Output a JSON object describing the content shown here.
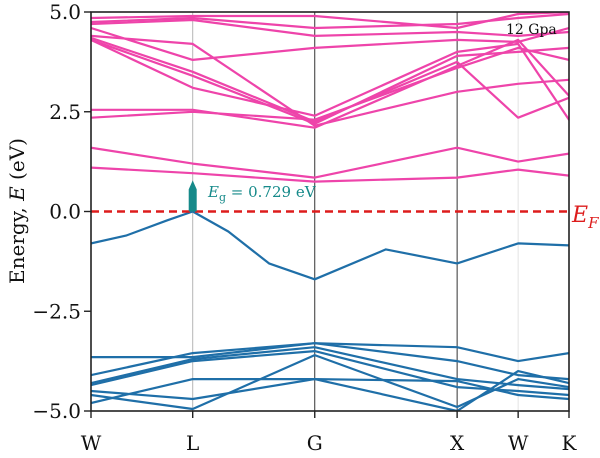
{
  "chart_data": {
    "type": "line",
    "title": "",
    "annotation_pressure": "12 Gpa",
    "ylabel": {
      "prefix": "Energy, ",
      "symbol": "E",
      "unit": " (eV)"
    },
    "ylim": [
      -5.0,
      5.0
    ],
    "yticks": [
      {
        "value": 5.0,
        "label": "5.0"
      },
      {
        "value": 2.5,
        "label": "2.5"
      },
      {
        "value": 0.0,
        "label": "0.0"
      },
      {
        "value": -2.5,
        "label": "−2.5"
      },
      {
        "value": -5.0,
        "label": "−5.0"
      }
    ],
    "kpoint_labels": [
      "W",
      "L",
      "G",
      "X",
      "W",
      "K"
    ],
    "kpoint_positions": [
      0,
      1,
      2.2,
      3.6,
      4.2,
      4.7
    ],
    "fermi_level": {
      "value": 0.0,
      "label_main": "E",
      "label_sub": "F",
      "color": "#dd1c1c"
    },
    "band_gap": {
      "label_main": "E",
      "label_sub": "g",
      "label_value": " = 0.729 eV",
      "value_ev": 0.729,
      "color": "#168a8a"
    },
    "colors": {
      "conduction": "#ee44aa",
      "valence": "#1f6fa8"
    },
    "x_grid": [
      {
        "k": 1,
        "color": "#b5b5b5"
      },
      {
        "k": 2.2,
        "color": "#333333"
      },
      {
        "k": 3.6,
        "color": "#333333"
      },
      {
        "k": 4.2,
        "color": "#e3e3e3"
      }
    ],
    "series": [
      {
        "band": "conduction",
        "x": [
          0,
          1,
          2.2,
          3.6,
          4.2,
          4.7
        ],
        "y": [
          1.1,
          0.96,
          0.75,
          0.85,
          1.05,
          0.9
        ]
      },
      {
        "band": "conduction",
        "x": [
          0,
          1,
          2.2,
          3.6,
          4.2,
          4.7
        ],
        "y": [
          1.6,
          1.2,
          0.85,
          1.6,
          1.25,
          1.45
        ]
      },
      {
        "band": "conduction",
        "x": [
          0,
          1,
          2.2,
          3.6,
          4.2,
          4.7
        ],
        "y": [
          2.35,
          2.5,
          2.3,
          3.6,
          4.1,
          3.8
        ]
      },
      {
        "band": "conduction",
        "x": [
          0,
          1,
          2.2,
          3.6,
          4.2,
          4.7
        ],
        "y": [
          2.55,
          2.55,
          2.1,
          3.65,
          4.3,
          2.9
        ]
      },
      {
        "band": "conduction",
        "x": [
          0,
          1,
          2.2,
          3.6,
          4.2,
          4.7
        ],
        "y": [
          4.4,
          4.2,
          2.15,
          3.0,
          3.2,
          3.3
        ]
      },
      {
        "band": "conduction",
        "x": [
          0,
          1,
          2.2,
          3.6,
          4.2,
          4.7
        ],
        "y": [
          4.3,
          3.4,
          2.2,
          3.9,
          4.0,
          4.1
        ]
      },
      {
        "band": "conduction",
        "x": [
          0,
          1,
          2.2,
          3.6,
          4.2,
          4.7
        ],
        "y": [
          4.35,
          3.5,
          2.25,
          3.75,
          2.35,
          2.85
        ]
      },
      {
        "band": "conduction",
        "x": [
          0,
          1,
          2.2,
          3.6,
          4.2,
          4.7
        ],
        "y": [
          4.3,
          3.1,
          2.4,
          4.0,
          4.2,
          2.3
        ]
      },
      {
        "band": "conduction",
        "x": [
          0,
          1,
          2.2,
          3.6,
          4.2,
          4.7
        ],
        "y": [
          4.6,
          3.8,
          4.1,
          4.3,
          4.25,
          4.6
        ]
      },
      {
        "band": "conduction",
        "x": [
          0,
          1,
          2.2,
          3.6,
          4.2,
          4.7
        ],
        "y": [
          4.7,
          4.8,
          4.4,
          4.5,
          4.4,
          4.5
        ]
      },
      {
        "band": "conduction",
        "x": [
          0,
          1,
          2.2,
          3.6,
          4.2,
          4.7
        ],
        "y": [
          4.75,
          4.85,
          4.6,
          4.7,
          4.85,
          4.95
        ]
      },
      {
        "band": "conduction",
        "x": [
          0,
          1,
          2.2,
          3.6,
          4.2,
          4.7
        ],
        "y": [
          4.85,
          4.9,
          4.9,
          4.6,
          4.95,
          5.0
        ]
      },
      {
        "band": "valence",
        "x": [
          0,
          0.35,
          0.75,
          1,
          1.35,
          1.75,
          2.2,
          2.9,
          3.6,
          4.2,
          4.7
        ],
        "y": [
          -0.8,
          -0.6,
          -0.22,
          0.0,
          -0.5,
          -1.3,
          -1.7,
          -0.95,
          -1.3,
          -0.8,
          -0.85
        ]
      },
      {
        "band": "valence",
        "x": [
          0,
          1,
          2.2,
          3.6,
          4.2,
          4.7
        ],
        "y": [
          -3.65,
          -3.65,
          -3.3,
          -3.4,
          -3.75,
          -3.55
        ]
      },
      {
        "band": "valence",
        "x": [
          0,
          1,
          2.2,
          3.6,
          4.2,
          4.7
        ],
        "y": [
          -4.1,
          -3.55,
          -3.3,
          -3.75,
          -4.1,
          -4.2
        ]
      },
      {
        "band": "valence",
        "x": [
          0,
          1,
          2.2,
          3.6,
          4.2,
          4.7
        ],
        "y": [
          -4.3,
          -3.7,
          -3.4,
          -4.2,
          -4.35,
          -4.45
        ]
      },
      {
        "band": "valence",
        "x": [
          0,
          1,
          2.2,
          3.6,
          4.2,
          4.7
        ],
        "y": [
          -4.35,
          -3.75,
          -3.5,
          -4.4,
          -4.5,
          -4.6
        ]
      },
      {
        "band": "valence",
        "x": [
          0,
          1,
          2.2,
          3.6,
          4.2,
          4.7
        ],
        "y": [
          -4.5,
          -4.7,
          -4.2,
          -4.25,
          -4.6,
          -4.7
        ]
      },
      {
        "band": "valence",
        "x": [
          0,
          1,
          2.2,
          3.6,
          4.2,
          4.7
        ],
        "y": [
          -4.6,
          -4.95,
          -3.6,
          -4.9,
          -4.2,
          -4.4
        ]
      },
      {
        "band": "valence",
        "x": [
          0,
          1,
          2.2,
          3.6,
          4.2,
          4.7
        ],
        "y": [
          -4.8,
          -4.2,
          -4.2,
          -5.0,
          -4.0,
          -4.3
        ]
      }
    ]
  }
}
